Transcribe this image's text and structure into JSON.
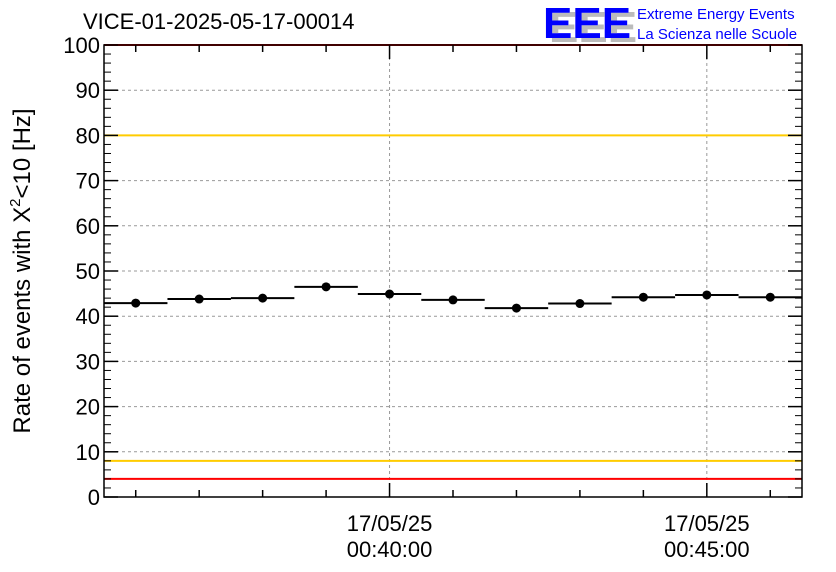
{
  "chart_data": {
    "type": "scatter",
    "title": "VICE-01-2025-05-17-00014",
    "ylabel_main": "Rate of events with X",
    "ylabel_sup": "2",
    "ylabel_tail": "<10 [Hz]",
    "xlabel": "",
    "ylim": [
      0,
      100
    ],
    "xlim_minutes": [
      35.5,
      46.5
    ],
    "yticks": [
      0,
      10,
      20,
      30,
      40,
      50,
      60,
      70,
      80,
      90,
      100
    ],
    "xticks": [
      {
        "minute": 40,
        "date": "17/05/25",
        "time": "00:40:00"
      },
      {
        "minute": 45,
        "date": "17/05/25",
        "time": "00:45:00"
      }
    ],
    "bin_width_minutes": 1,
    "x_minutes": [
      36,
      37,
      38,
      39,
      40,
      41,
      42,
      43,
      44,
      45,
      46
    ],
    "values": [
      42.9,
      43.8,
      44.0,
      46.5,
      44.9,
      43.6,
      41.8,
      42.8,
      44.2,
      44.7,
      44.2
    ],
    "reference_lines": [
      {
        "value": 100,
        "color": "#ff0000"
      },
      {
        "value": 80,
        "color": "#ffcc00"
      },
      {
        "value": 8,
        "color": "#ffcc00"
      },
      {
        "value": 4,
        "color": "#ff0000"
      }
    ],
    "grid": true
  },
  "logo": {
    "mark": "EEE",
    "line1": "Extreme Energy Events",
    "line2": "La Scienza nelle Scuole",
    "color": "#0000ff"
  }
}
